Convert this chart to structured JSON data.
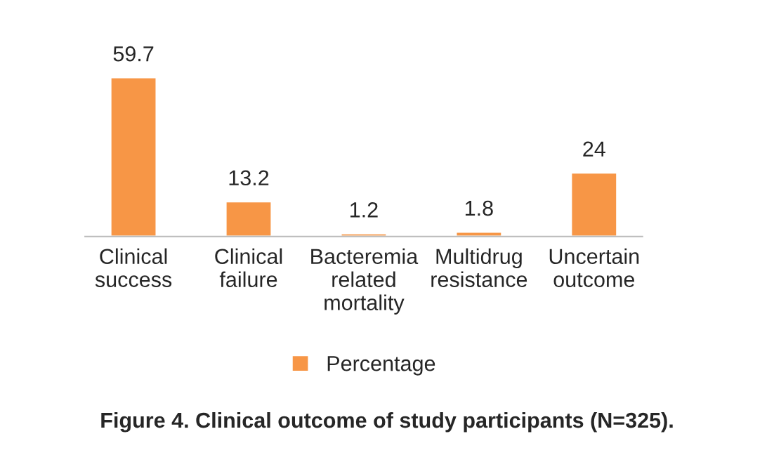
{
  "chart_data": {
    "type": "bar",
    "categories": [
      "Clinical\nsuccess",
      "Clinical\nfailure",
      "Bacteremia\nrelated\nmortality",
      "Multidrug\nresistance",
      "Uncertain\noutcome"
    ],
    "series": [
      {
        "name": "Percentage",
        "color": "#f79646",
        "values": [
          59.7,
          13.2,
          1.2,
          1.8,
          24
        ]
      }
    ],
    "data_labels": true,
    "legend": "bottom",
    "grid": false,
    "annotations": [
      "Figure 4. Clinical outcome of study participants (N=325)."
    ]
  }
}
